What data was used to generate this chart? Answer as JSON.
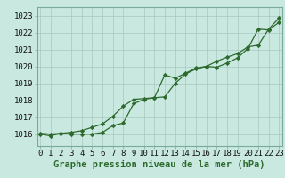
{
  "hours": [
    0,
    1,
    2,
    3,
    4,
    5,
    6,
    7,
    8,
    9,
    10,
    11,
    12,
    13,
    14,
    15,
    16,
    17,
    18,
    19,
    20,
    21,
    22,
    23
  ],
  "line1": [
    1016.0,
    1015.9,
    1016.05,
    1016.0,
    1016.0,
    1016.0,
    1016.1,
    1016.5,
    1016.65,
    1017.8,
    1018.05,
    1018.15,
    1019.5,
    1019.3,
    1019.6,
    1019.9,
    1020.0,
    1019.95,
    1020.2,
    1020.5,
    1021.05,
    1022.2,
    1022.15,
    1022.6
  ],
  "line2": [
    1016.05,
    1016.0,
    1016.05,
    1016.1,
    1016.2,
    1016.4,
    1016.6,
    1017.05,
    1017.65,
    1018.05,
    1018.1,
    1018.15,
    1018.2,
    1019.0,
    1019.55,
    1019.85,
    1020.0,
    1020.3,
    1020.55,
    1020.75,
    1021.15,
    1021.25,
    1022.2,
    1022.85
  ],
  "line_color": "#2d6a2d",
  "bg_color": "#c8e8e0",
  "grid_color": "#a8c8c0",
  "xlabel": "Graphe pression niveau de la mer (hPa)",
  "ylim_min": 1015.3,
  "ylim_max": 1023.5,
  "yticks": [
    1016,
    1017,
    1018,
    1019,
    1020,
    1021,
    1022,
    1023
  ],
  "xticks": [
    0,
    1,
    2,
    3,
    4,
    5,
    6,
    7,
    8,
    9,
    10,
    11,
    12,
    13,
    14,
    15,
    16,
    17,
    18,
    19,
    20,
    21,
    22,
    23
  ],
  "xlabel_fontsize": 7.5,
  "tick_fontsize": 6.5,
  "marker": "D",
  "markersize": 2.2,
  "linewidth": 0.9
}
